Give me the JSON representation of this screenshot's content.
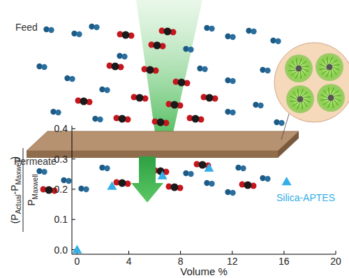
{
  "chart_data": {
    "type": "scatter",
    "x": [
      0,
      2.7,
      6.6,
      10.2,
      16.2
    ],
    "series": [
      {
        "name": "Silica-APTES",
        "color": "#33aee6",
        "marker": "triangle",
        "values": [
          0,
          0.21,
          0.245,
          0.27,
          0.225
        ]
      }
    ],
    "xlabel": "Volume %",
    "ylabel": {
      "numerator": [
        "(P",
        "Actual",
        "-P",
        "Maxwell",
        ")"
      ],
      "denominator": [
        "P",
        "Maxwell"
      ]
    },
    "xlim": [
      -0.4,
      20
    ],
    "xticks": [
      0,
      4,
      8,
      12,
      16,
      20
    ],
    "ylim": [
      -0.015,
      0.41
    ],
    "yticks": [
      {
        "value": 0,
        "label": "0.0"
      },
      {
        "value": 0.1,
        "label": "0.1"
      },
      {
        "value": 0.2,
        "label": "0.2"
      },
      {
        "value": 0.3,
        "label": "0.3"
      },
      {
        "value": 0.4,
        "label": "0.4"
      }
    ],
    "grid": false
  },
  "diagram": {
    "feed_label": "Feed",
    "permeate_label": "Permeate"
  }
}
